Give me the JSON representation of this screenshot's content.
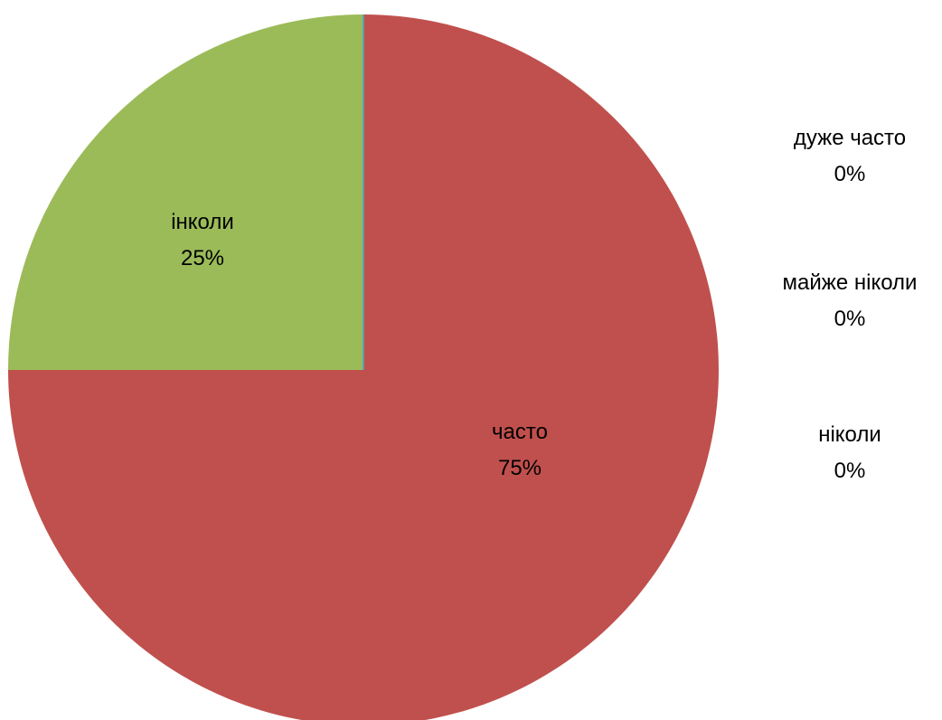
{
  "chart_data": {
    "type": "pie",
    "title": "",
    "slices": [
      {
        "name": "дуже часто",
        "value": 0,
        "label": "0%",
        "color": "#4F81BD"
      },
      {
        "name": "часто",
        "value": 75,
        "label": "75%",
        "color": "#C0504D"
      },
      {
        "name": "інколи",
        "value": 25,
        "label": "25%",
        "color": "#9BBB59"
      },
      {
        "name": "майже ніколи",
        "value": 0,
        "label": "0%",
        "color": "#8064A2"
      },
      {
        "name": "ніколи",
        "value": 0,
        "label": "0%",
        "color": "#4BACC6"
      }
    ],
    "legend": "none",
    "data_labels": "category name and percentage"
  }
}
